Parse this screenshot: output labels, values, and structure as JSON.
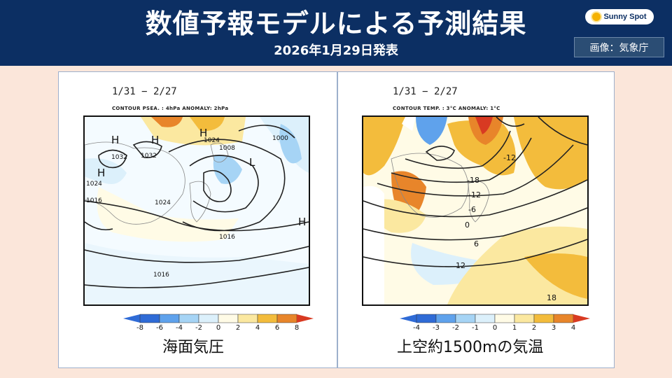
{
  "header": {
    "title": "数値予報モデルによる予測結果",
    "subtitle": "2026年1月29日発表",
    "logo_text": "Sunny Spot",
    "credit": "画像：気象庁"
  },
  "left_map": {
    "period": "1/31 − 2/27",
    "contour_label": "CONTOUR PSEA. :  4hPa    ANOMALY:  2hPa",
    "labels": {
      "h1": "H",
      "h2": "H",
      "h3": "H",
      "h4": "H",
      "l1": "L",
      "h5": "H",
      "p1032a": "1032",
      "p1032b": "1032",
      "p1024a": "1024",
      "p1024b": "1024",
      "p1024c": "1024",
      "p1016a": "1016",
      "p1016b": "1016",
      "p1016c": "1016",
      "p1008": "1008",
      "p1000": "1000"
    },
    "scale": [
      "-8",
      "-6",
      "-4",
      "-2",
      "0",
      "2",
      "4",
      "6",
      "8"
    ],
    "caption": "海面気圧"
  },
  "right_map": {
    "period": "1/31 − 2/27",
    "contour_label": "CONTOUR TEMP. :  3°C    ANOMALY:  1°C",
    "labels": {
      "m12a": "-12",
      "m18": "-18",
      "m12b": "-12",
      "m6": "-6",
      "z0": "0",
      "t6": "6",
      "t12": "12",
      "t18": "18"
    },
    "scale": [
      "-4",
      "-3",
      "-2",
      "-1",
      "0",
      "1",
      "2",
      "3",
      "4"
    ],
    "caption": "上空約1500mの気温"
  },
  "colors": {
    "header_bg": "#0c2f63",
    "page_bg": "#fbe6da",
    "scale": [
      "#2f6bd6",
      "#5fa2ec",
      "#a6d4f5",
      "#dcf0fb",
      "#fffbe6",
      "#fbe8a0",
      "#f3bc3c",
      "#e8852a",
      "#d83a22"
    ]
  }
}
